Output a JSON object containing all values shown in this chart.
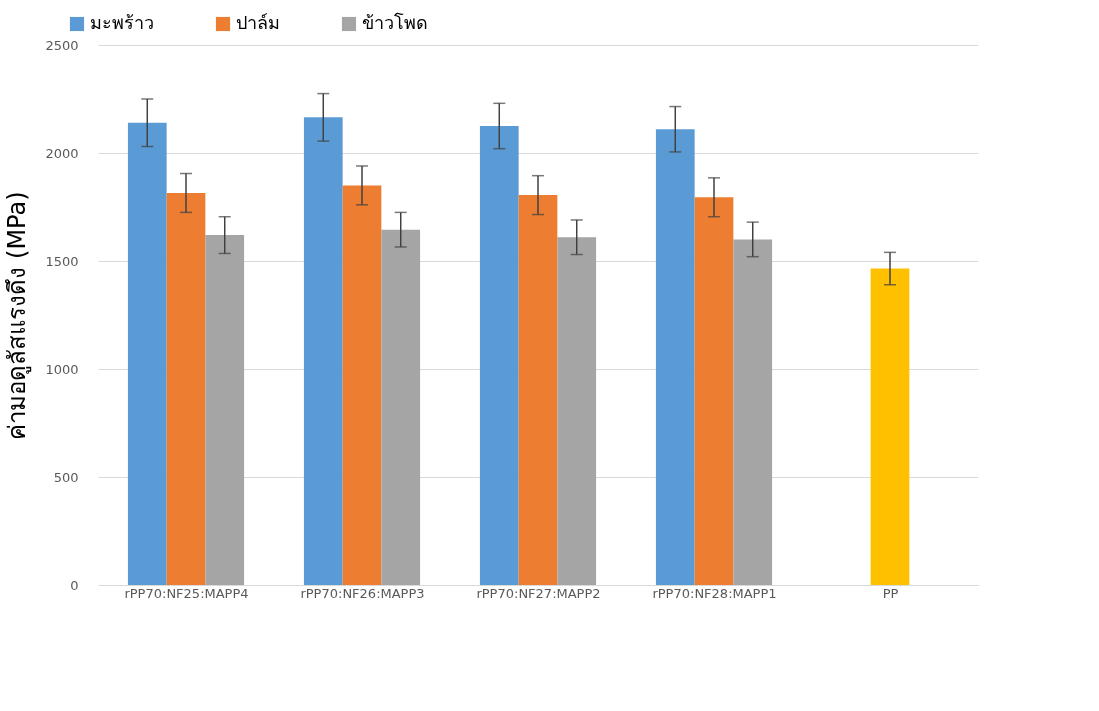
{
  "chart_data": {
    "type": "bar",
    "ylabel": "ค่ามอดูลัสแรงดึง (MPa)",
    "categories": [
      "rPP70:NF25:MAPP4",
      "rPP70:NF26:MAPP3",
      "rPP70:NF27:MAPP2",
      "rPP70:NF28:MAPP1",
      "PP"
    ],
    "series": [
      {
        "name": "มะพร้าว",
        "color": "#5b9bd5",
        "values": [
          2140,
          2165,
          2125,
          2110,
          null
        ],
        "errors": [
          110,
          110,
          105,
          105,
          null
        ]
      },
      {
        "name": "ปาล์ม",
        "color": "#ed7d31",
        "values": [
          1815,
          1850,
          1805,
          1795,
          null
        ],
        "errors": [
          90,
          90,
          90,
          90,
          null
        ]
      },
      {
        "name": "ข้าวโพด",
        "color": "#a5a5a5",
        "values": [
          1620,
          1645,
          1610,
          1600,
          null
        ],
        "errors": [
          85,
          80,
          80,
          80,
          null
        ]
      },
      {
        "color": "#ffc000",
        "values": [
          null,
          null,
          null,
          null,
          1465
        ],
        "errors": [
          null,
          null,
          null,
          null,
          75
        ]
      }
    ],
    "ylim": [
      0,
      2500
    ],
    "yticks": [
      0,
      500,
      1000,
      1500,
      2000,
      2500
    ],
    "grid": "y",
    "legend": "top left"
  }
}
